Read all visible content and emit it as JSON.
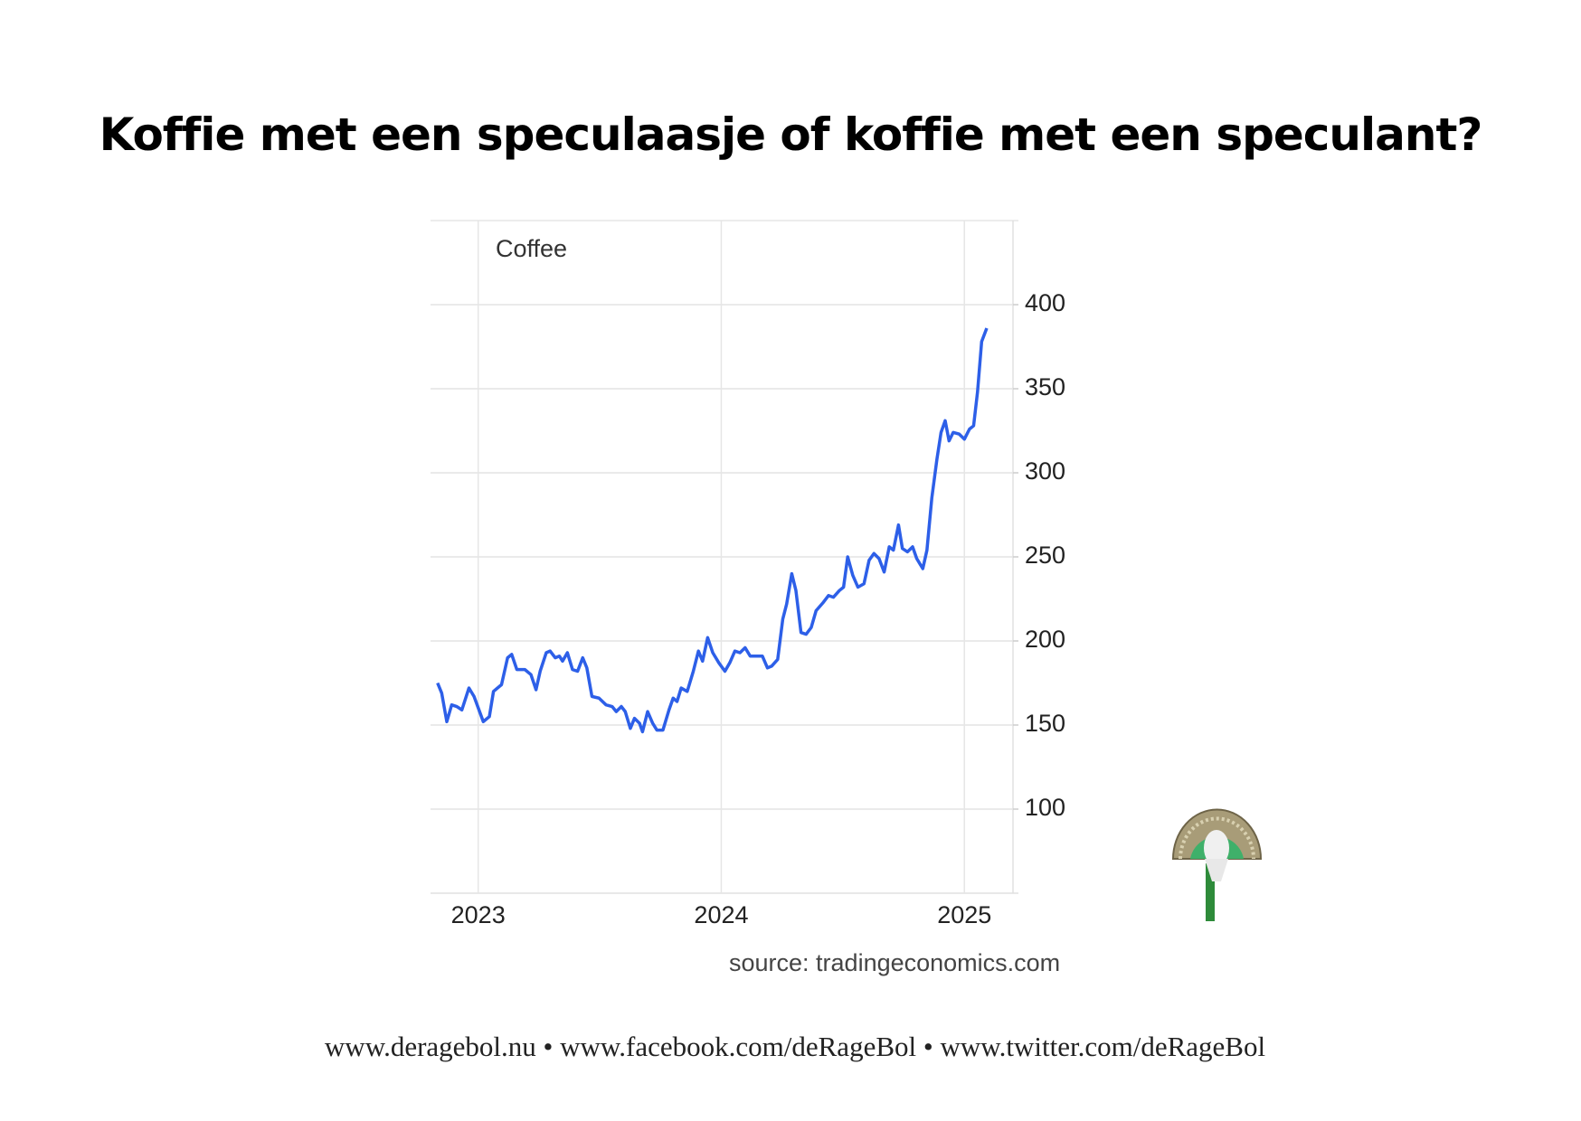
{
  "title": "Koffie met een speculaasje of koffie met een speculant?",
  "chart_data": {
    "type": "line",
    "x": [
      2022.833,
      2022.85,
      2022.871,
      2022.891,
      2022.912,
      2022.933,
      2022.962,
      2022.983,
      2023.021,
      2023.046,
      2023.063,
      2023.096,
      2023.121,
      2023.138,
      2023.159,
      2023.192,
      2023.217,
      2023.238,
      2023.255,
      2023.28,
      2023.296,
      2023.317,
      2023.334,
      2023.347,
      2023.367,
      2023.388,
      2023.409,
      2023.43,
      2023.447,
      2023.468,
      2023.497,
      2023.526,
      2023.551,
      2023.568,
      2023.589,
      2023.605,
      2023.626,
      2023.643,
      2023.664,
      2023.676,
      2023.697,
      2023.718,
      2023.735,
      2023.76,
      2023.785,
      2023.802,
      2023.818,
      2023.835,
      2023.86,
      2023.885,
      2023.906,
      2023.923,
      2023.944,
      2023.965,
      2023.99,
      2024.015,
      2024.035,
      2024.056,
      2024.077,
      2024.098,
      2024.119,
      2024.148,
      2024.169,
      2024.19,
      2024.207,
      2024.232,
      2024.253,
      2024.269,
      2024.29,
      2024.307,
      2024.328,
      2024.349,
      2024.37,
      2024.39,
      2024.42,
      2024.441,
      2024.461,
      2024.486,
      2024.503,
      2024.52,
      2024.541,
      2024.562,
      2024.587,
      2024.608,
      2024.628,
      2024.649,
      2024.67,
      2024.691,
      2024.708,
      2024.729,
      2024.745,
      2024.766,
      2024.787,
      2024.804,
      2024.829,
      2024.846,
      2024.866,
      2024.887,
      2024.904,
      2024.921,
      2024.937,
      2024.954,
      2024.979,
      2025.0,
      2025.021,
      2025.038,
      2025.054,
      2025.071,
      2025.092
    ],
    "series": [
      {
        "name": "Coffee",
        "color": "#2d5fe8",
        "values": [
          175,
          169,
          152,
          162,
          161,
          159,
          172,
          167,
          152,
          155,
          170,
          174,
          190,
          192,
          183,
          183,
          180,
          171,
          182,
          193,
          194,
          190,
          191,
          188,
          193,
          183,
          182,
          190,
          184,
          167,
          166,
          162,
          161,
          158,
          161,
          158,
          148,
          154,
          151,
          146,
          158,
          151,
          147,
          147,
          159,
          166,
          164,
          172,
          170,
          182,
          194,
          188,
          202,
          193,
          187,
          182,
          187,
          194,
          193,
          196,
          191,
          191,
          191,
          184,
          185,
          189,
          213,
          222,
          240,
          230,
          205,
          204,
          208,
          218,
          223,
          227,
          226,
          230,
          232,
          250,
          239,
          232,
          234,
          248,
          252,
          249,
          241,
          256,
          254,
          269,
          255,
          253,
          256,
          249,
          243,
          254,
          285,
          308,
          324,
          331,
          319,
          324,
          323,
          320,
          326,
          328,
          348,
          378,
          386
        ]
      }
    ],
    "xlim": [
      2022.804,
      2025.2
    ],
    "xticks": [
      2023,
      2024,
      2025
    ],
    "ylim": [
      50,
      450
    ],
    "yticks": [
      100,
      150,
      200,
      250,
      300,
      350,
      400
    ],
    "grid": true
  },
  "source": "source: tradingeconomics.com",
  "footer": "www.deragebol.nu • www.facebook.com/deRageBol • www.twitter.com/deRageBol"
}
